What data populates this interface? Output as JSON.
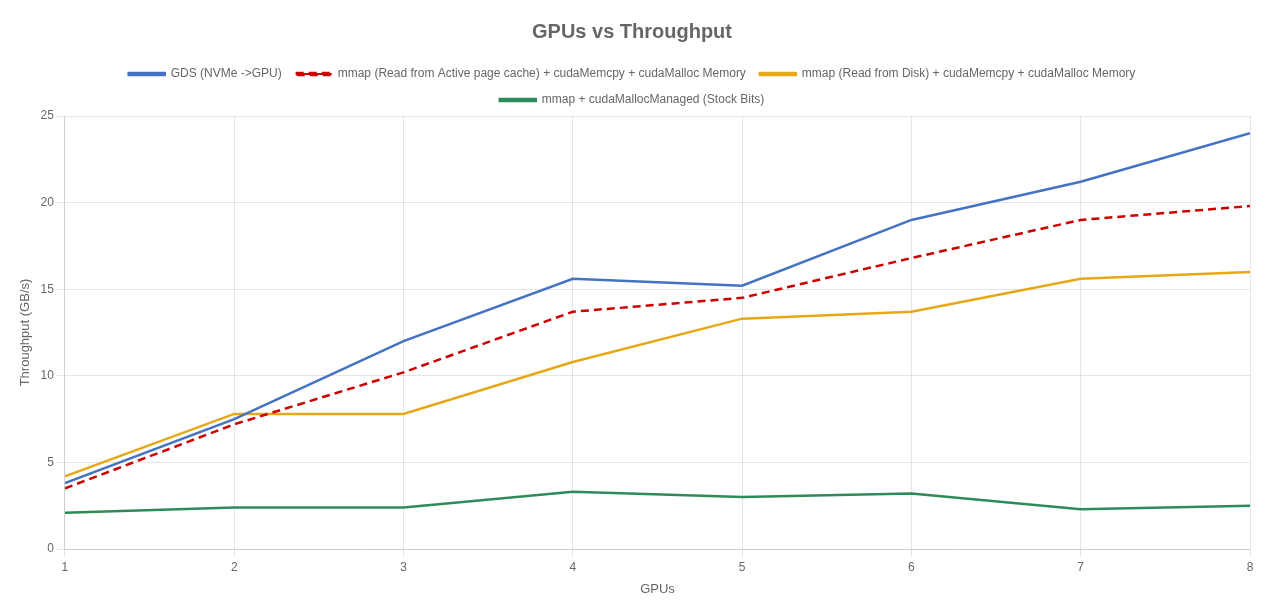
{
  "chart_data": {
    "type": "line",
    "title": "GPUs vs Throughput",
    "xlabel": "GPUs",
    "ylabel": "Throughput (GB/s)",
    "x": [
      1,
      2,
      3,
      4,
      5,
      6,
      7,
      8
    ],
    "series": [
      {
        "name": "GDS (NVMe ->GPU)",
        "color": "#4472C4",
        "line_style": "solid",
        "values": [
          3.8,
          7.5,
          12.0,
          15.6,
          15.2,
          19.0,
          21.2,
          24.0
        ]
      },
      {
        "name": "mmap (Read from Active page cache) + cudaMemcpy + cudaMalloc Memory",
        "color": "#CC0000",
        "line_style": "dashed",
        "values": [
          3.5,
          7.2,
          10.2,
          13.7,
          14.5,
          16.8,
          19.0,
          19.8
        ]
      },
      {
        "name": "mmap (Read from Disk) + cudaMemcpy + cudaMalloc Memory",
        "color": "#E6A817",
        "line_style": "solid",
        "values": [
          4.2,
          7.8,
          7.8,
          10.8,
          13.3,
          13.7,
          15.6,
          16.0
        ]
      },
      {
        "name": "mmap + cudaMallocManaged (Stock Bits)",
        "color": "#2E8B57",
        "line_style": "solid",
        "values": [
          2.1,
          2.4,
          2.4,
          3.3,
          3.0,
          3.2,
          2.3,
          2.5
        ]
      }
    ],
    "xlim": [
      1,
      8
    ],
    "xticks": [
      1,
      2,
      3,
      4,
      5,
      6,
      7,
      8
    ],
    "ylim": [
      0,
      25
    ],
    "yticks": [
      0,
      5,
      10,
      15,
      20,
      25
    ],
    "grid": true,
    "legend": "top"
  }
}
